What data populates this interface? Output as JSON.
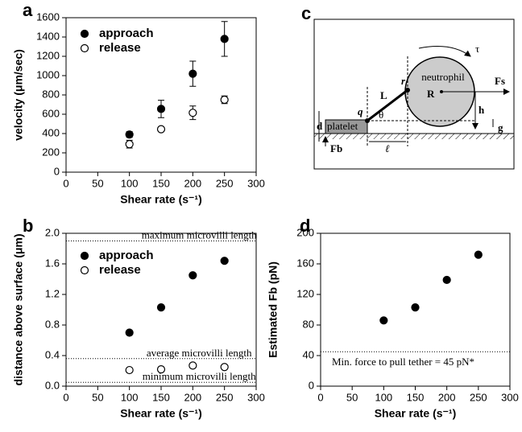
{
  "chart_data": [
    {
      "type": "scatter",
      "panel": "a",
      "xlabel": "Shear rate (s⁻¹)",
      "ylabel": "velocity (μm/sec)",
      "x": [
        100,
        150,
        200,
        250
      ],
      "series": [
        {
          "name": "approach",
          "color": "#000000",
          "marker": "filled",
          "values": [
            390,
            655,
            1020,
            1380
          ],
          "errors": [
            30,
            90,
            130,
            180
          ]
        },
        {
          "name": "release",
          "color": "#000000",
          "marker": "open",
          "values": [
            290,
            445,
            615,
            750
          ],
          "errors": [
            40,
            20,
            70,
            40
          ]
        }
      ],
      "xlim": [
        0,
        300
      ],
      "xticks": [
        0,
        50,
        100,
        150,
        200,
        250,
        300
      ],
      "ylim": [
        0,
        1600
      ],
      "yticks": [
        0,
        200,
        400,
        600,
        800,
        1000,
        1200,
        1400,
        1600
      ]
    },
    {
      "type": "scatter",
      "panel": "b",
      "xlabel": "Shear rate (s⁻¹)",
      "ylabel": "distance above surface (μm)",
      "x": [
        100,
        150,
        200,
        250
      ],
      "series": [
        {
          "name": "approach",
          "color": "#000000",
          "marker": "filled",
          "values": [
            0.7,
            1.03,
            1.45,
            1.64
          ]
        },
        {
          "name": "release",
          "color": "#000000",
          "marker": "open",
          "values": [
            0.21,
            0.22,
            0.27,
            0.25
          ]
        }
      ],
      "reference_lines": [
        {
          "value": 1.9,
          "label": "maximum microvilli length"
        },
        {
          "value": 0.36,
          "label": "average microvilli length"
        },
        {
          "value": 0.05,
          "label": "minimum microvilli length"
        }
      ],
      "xlim": [
        0,
        300
      ],
      "xticks": [
        0,
        50,
        100,
        150,
        200,
        250,
        300
      ],
      "ylim": [
        0,
        2
      ],
      "yticks": [
        {
          "value": 0,
          "label": "0.0"
        },
        0.4,
        0.8,
        1.2,
        1.6,
        {
          "value": 2,
          "label": "2.0"
        }
      ]
    },
    {
      "type": "scatter",
      "panel": "d",
      "xlabel": "Shear rate (s⁻¹)",
      "ylabel": "Estimated Fb (pN)",
      "x": [
        100,
        150,
        200,
        250
      ],
      "series": [
        {
          "name": null,
          "color": "#000000",
          "marker": "filled",
          "values": [
            86,
            103,
            139,
            172
          ]
        }
      ],
      "reference_lines": [
        {
          "value": 45,
          "label": "Min. force to pull tether = 45 pN*"
        }
      ],
      "xlim": [
        0,
        300
      ],
      "xticks": [
        0,
        50,
        100,
        150,
        200,
        250,
        300
      ],
      "ylim": [
        0,
        200
      ],
      "yticks": [
        0,
        40,
        80,
        120,
        160,
        200
      ]
    }
  ],
  "diagram": {
    "panel": "c",
    "neutrophil": "neutrophil",
    "platelet": "platelet",
    "tau": "τ",
    "fs": "Fs",
    "big_r": "R",
    "small_r": "r",
    "l": "L",
    "q": "q",
    "theta": "θ",
    "h": "h",
    "d": "d",
    "g": "g",
    "fb": "Fb",
    "ell": "ℓ"
  }
}
